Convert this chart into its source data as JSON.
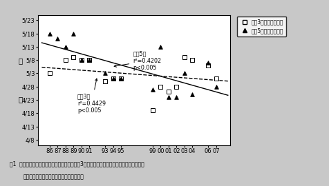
{
  "title1": "囱1  水盤式コナガ性フェロモントラップの連倁3日および５日以上誘殺期間初日の年次変化",
  "title2": "（盛岡市、東北農業研究センター内圏場）",
  "xlabel_ticks": [
    "86",
    "87",
    "88",
    "89",
    "90",
    "91",
    "93",
    "94",
    "95",
    "99",
    "00",
    "01",
    "02",
    "03",
    "04",
    "06",
    "07"
  ],
  "xlabel_values": [
    1986,
    1987,
    1988,
    1989,
    1990,
    1991,
    1993,
    1994,
    1995,
    1999,
    2000,
    2001,
    2002,
    2003,
    2004,
    2006,
    2007
  ],
  "ylabel_ticks": [
    "4/8",
    "4/13",
    "4/18",
    "4/23",
    "4/28",
    "5/3",
    "5/8",
    "5/13",
    "5/18",
    "5/23"
  ],
  "ylabel_values": [
    98,
    103,
    108,
    113,
    118,
    123,
    128,
    133,
    138,
    143
  ],
  "sq_x": [
    1986,
    1988,
    1989,
    1990,
    1991,
    1993,
    1994,
    1995,
    1999,
    2000,
    2001,
    2002,
    2003,
    2004,
    2006,
    2007
  ],
  "sq_y": [
    123,
    128,
    129,
    128,
    128,
    120,
    121,
    121,
    109,
    118,
    116,
    118,
    129,
    128,
    126,
    121
  ],
  "tr_x": [
    1986,
    1987,
    1988,
    1989,
    1990,
    1991,
    1993,
    1994,
    1995,
    1999,
    2000,
    2001,
    2002,
    2003,
    2004,
    2006,
    2007
  ],
  "tr_y": [
    138,
    136,
    133,
    138,
    128,
    128,
    123,
    121,
    121,
    117,
    133,
    114,
    114,
    123,
    115,
    127,
    118
  ],
  "legend_sq_label": "連倁3日以上誘殺初日",
  "legend_tr_label": "連倁5日以上誘殺初日",
  "ann3_text": "連倁3日\nr²=0.4429\np<0.005",
  "ann5_text": "連倁5日\nr²=0.4202\np<0.005",
  "ylabel_char1": "暦",
  "ylabel_char2": "日",
  "bg_color": "#c8c8c8",
  "plot_bg": "#ffffff",
  "border_color": "#000000"
}
